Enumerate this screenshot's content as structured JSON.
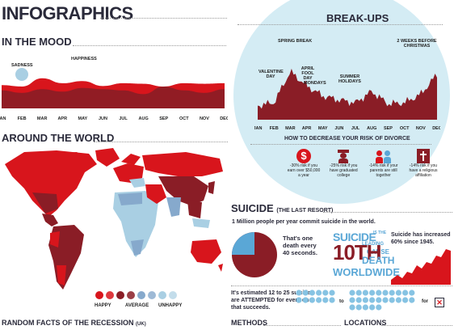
{
  "page": {
    "title": "INFOGRAPHICS"
  },
  "sections": {
    "mood": "IN THE MOOD",
    "world": "AROUND THE WORLD",
    "breakups": "BREAK-UPS",
    "divorce": "HOW TO DECREASE YOUR RISK OF DIVORCE",
    "suicide": "SUICIDE",
    "suicide_sub": "(THE LAST RESORT)",
    "random_facts": "RANDOM FACTS OF THE RECESSION",
    "random_facts_sub": "(UK)",
    "methods": "METHODS",
    "locations": "LOCATIONS"
  },
  "colors": {
    "happy": "#d8151c",
    "average": "#8a1d26",
    "unhappy": "#86a9cc",
    "blue_light": "#a9cfe3",
    "bg_circle": "#d4ecf4",
    "navy": "#2a2a3a"
  },
  "chart_data": [
    {
      "type": "area",
      "title": "IN THE MOOD",
      "categories": [
        "JAN",
        "FEB",
        "MAR",
        "APR",
        "MAY",
        "JUN",
        "JUL",
        "AUG",
        "SEP",
        "OCT",
        "NOV",
        "DEC"
      ],
      "series": [
        {
          "values": [
            0.55,
            0.5,
            0.8,
            0.62,
            0.7,
            0.52,
            0.62,
            0.6,
            0.5,
            0.62,
            0.6,
            0.62
          ]
        },
        {
          "values": [
            0.4,
            0.3,
            0.45,
            0.35,
            0.5,
            0.45,
            0.4,
            0.25,
            0.55,
            0.4,
            0.3,
            0.45
          ]
        }
      ],
      "annotations": [
        "SADNESS",
        "HAPPINESS"
      ]
    },
    {
      "type": "area",
      "title": "BREAK-UPS",
      "categories": [
        "JAN",
        "FEB",
        "MAR",
        "APR",
        "MAY",
        "JUN",
        "JUL",
        "AUG",
        "SEP",
        "OCT",
        "NOV",
        "DEC"
      ],
      "series": [
        {
          "values": [
            0.25,
            0.3,
            0.85,
            0.6,
            0.42,
            0.35,
            0.3,
            0.5,
            0.28,
            0.3,
            0.45,
            0.8
          ]
        }
      ],
      "annotations": [
        "VALENTINE DAY",
        "SPRING BREAK",
        "APRIL FOOL DAY",
        "MONDAYS",
        "SUMMER HOLIDAYS",
        "2 WEEKS BEFORE CHRISTMAS"
      ]
    }
  ],
  "divorce_risks": [
    {
      "icon": "dollar-icon",
      "text": "-30% risk if you earn over $50,000 a year"
    },
    {
      "icon": "graduate-icon",
      "text": "-25% risk if you have graduated college"
    },
    {
      "icon": "parents-icon",
      "text": "-14% risk if your parents are still together"
    },
    {
      "icon": "cross-icon",
      "text": "-14% risk if you have a religious affiliation"
    }
  ],
  "world_legend": {
    "happy": "HAPPY",
    "average": "AVERAGE",
    "unhappy": "UNHAPPY"
  },
  "suicide": {
    "intro": "1 Million people per year commit suicide in the world.",
    "pie_text": "That's one death every 40 seconds.",
    "tenth_prefix": "SUICIDE",
    "tenth_is": "IS THE",
    "tenth_leading": "LEADING",
    "tenth_cause": "CAUSE",
    "tenth_num": "10TH",
    "tenth_death": "DEATH",
    "tenth_worldwide": "WORLDWIDE",
    "increase": "Suicide has increased 60% since 1945.",
    "attempts": "It's estimated 12 to 25 suicides are ATTEMPTED for every one that succeeds.",
    "to": "to",
    "for": "for"
  }
}
